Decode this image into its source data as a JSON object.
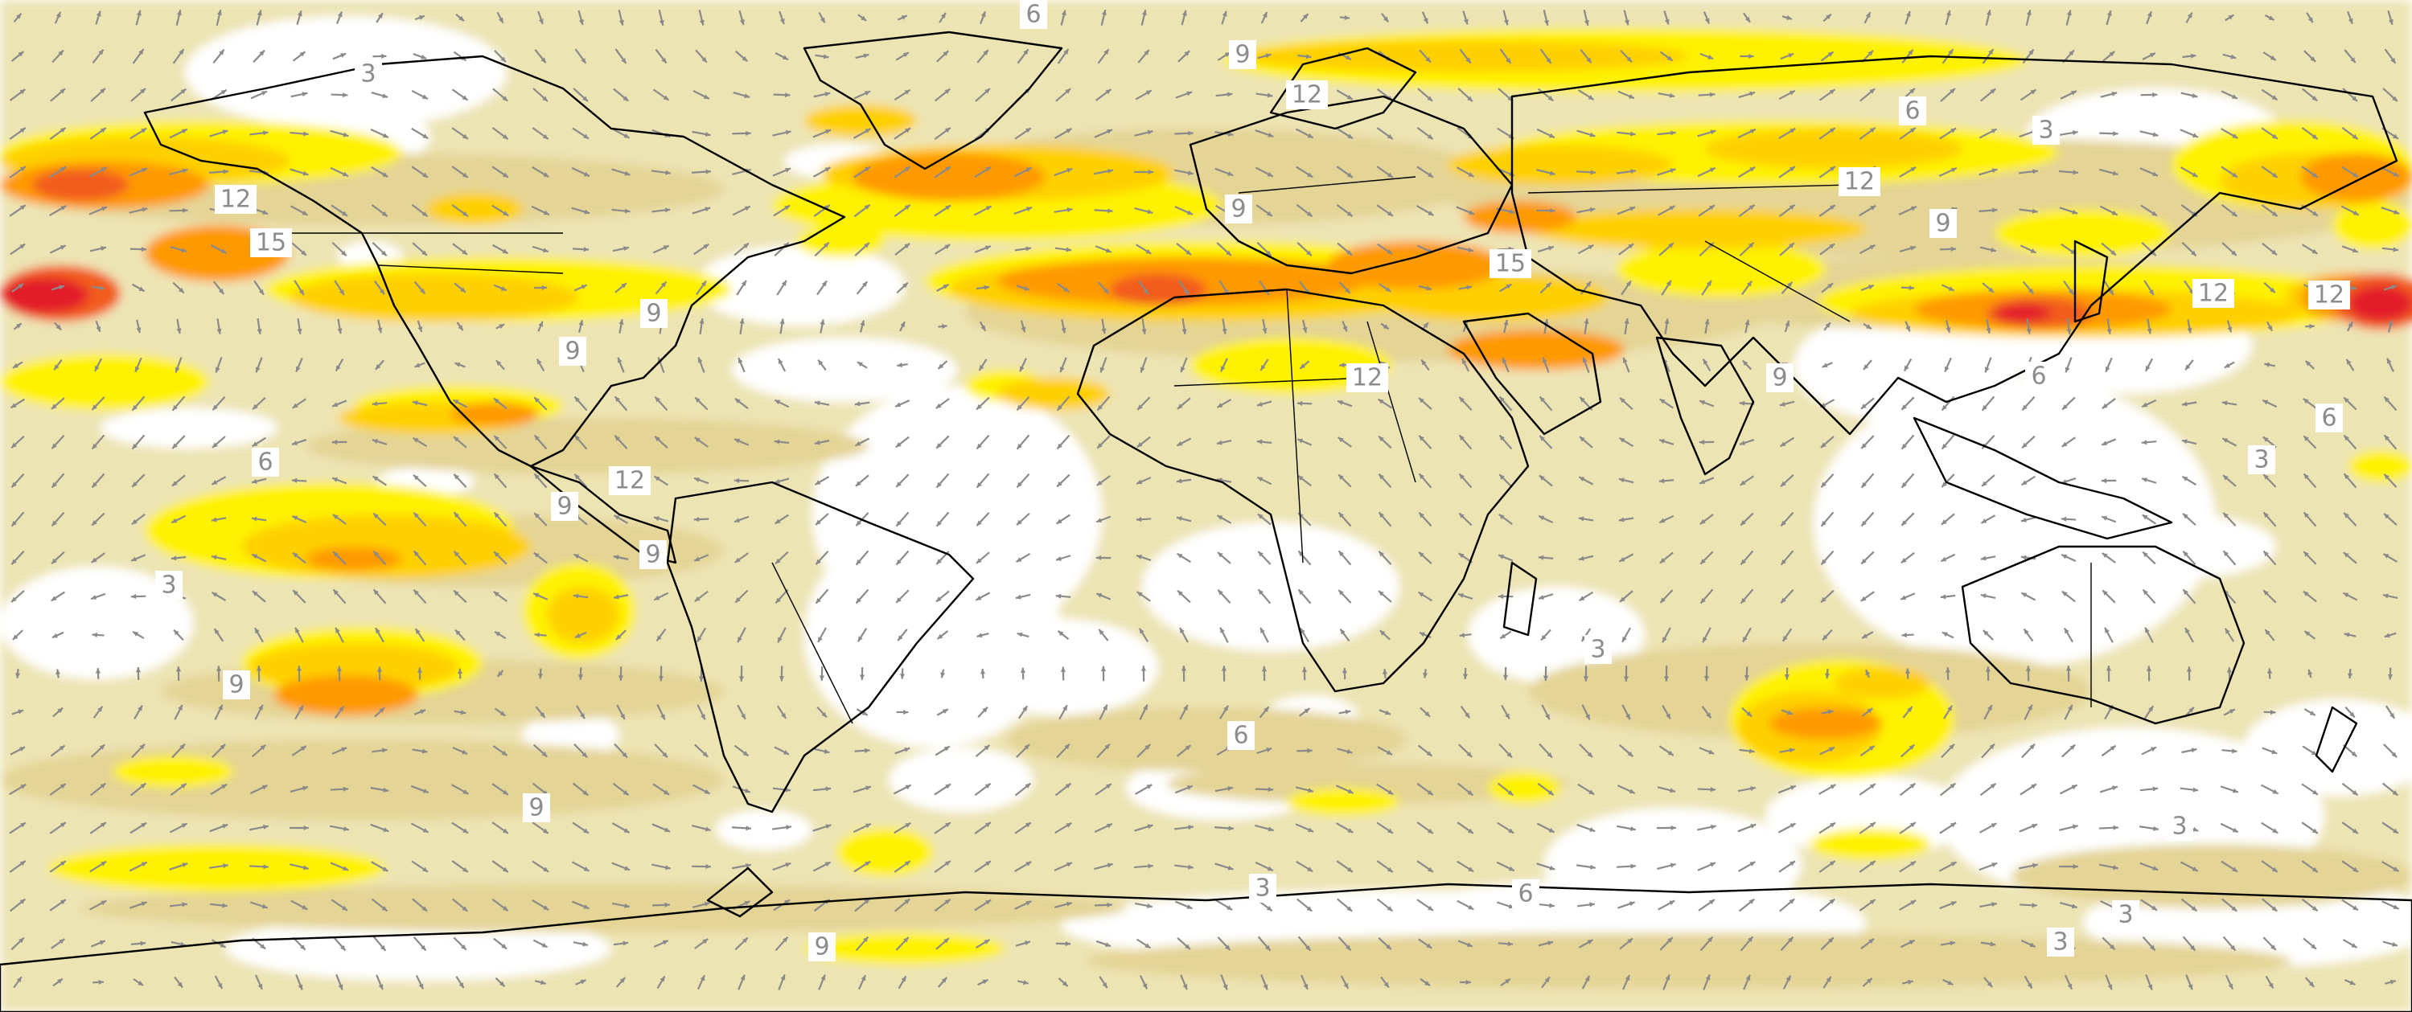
{
  "map": {
    "field": "wind speed shading with wind vectors",
    "projection": "plate carree (global)",
    "colors": {
      "background": "#ffffff",
      "level_3": "#ede4b4",
      "level_6": "#e4d495",
      "level_9": "#fff200",
      "level_12": "#ffd000",
      "level_15": "#ff9900",
      "level_18": "#f25c1c",
      "level_21": "#e31a2b",
      "vectors": "#8a8a8a",
      "coastlines": "#000000",
      "labels": "#8c8c8c"
    },
    "contour_labels": [
      "6",
      "9",
      "12",
      "3",
      "12",
      "15",
      "9",
      "9",
      "6",
      "12",
      "9",
      "9",
      "3",
      "9",
      "9",
      "6",
      "12",
      "9",
      "15",
      "9",
      "12",
      "6",
      "3",
      "9",
      "6",
      "12",
      "12",
      "6",
      "3",
      "3",
      "3",
      "3",
      "6",
      "3",
      "9",
      "3"
    ]
  }
}
